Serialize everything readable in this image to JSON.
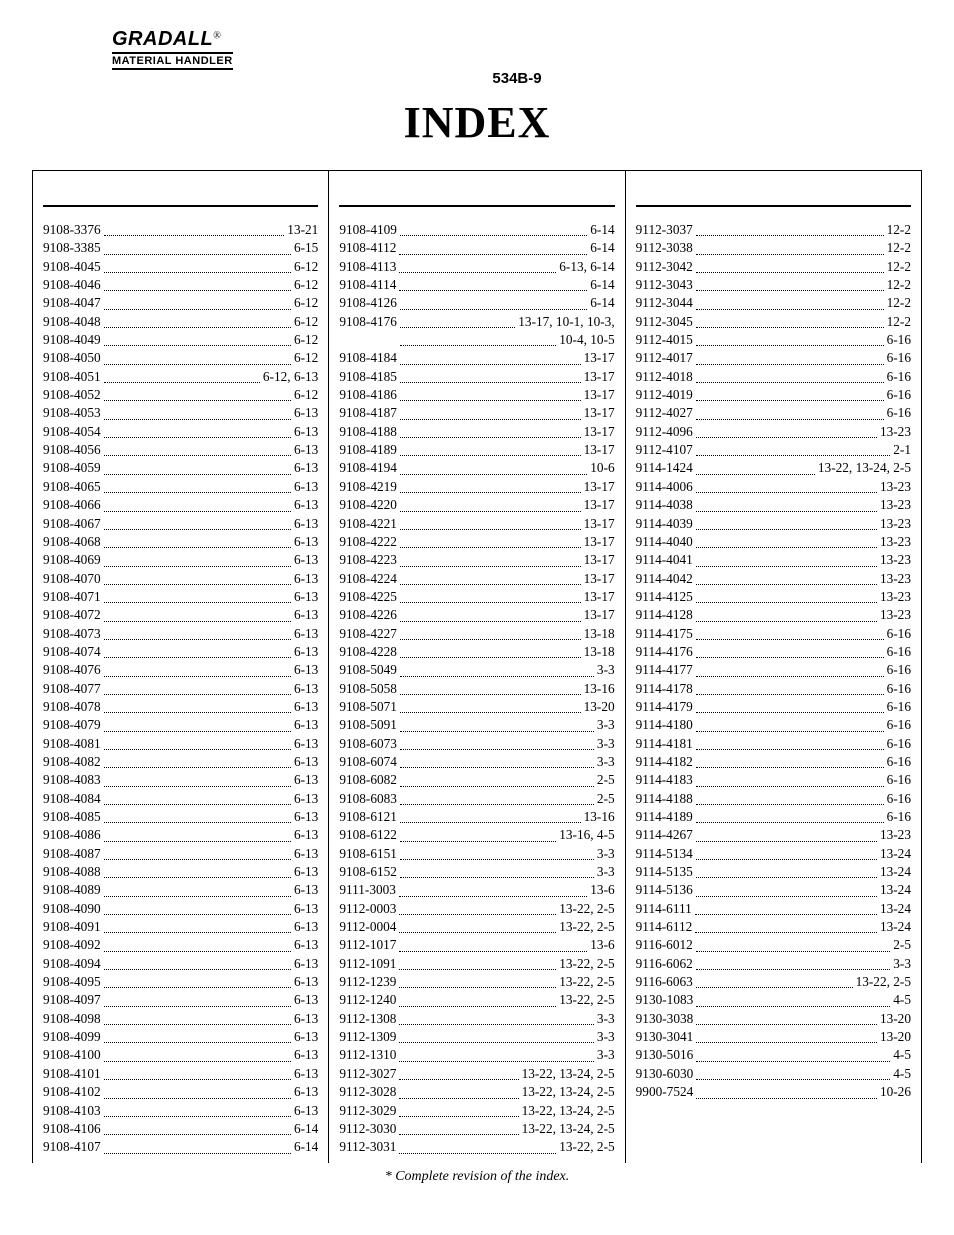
{
  "brand": {
    "name": "GRADALL",
    "registered": "®",
    "subtitle": "MATERIAL HANDLER",
    "model": "534B-9"
  },
  "title": "INDEX",
  "footnote": "*  Complete revision of the index.",
  "columns": [
    [
      {
        "part": "9108-3376",
        "page": "13-21"
      },
      {
        "part": "9108-3385",
        "page": "6-15"
      },
      {
        "part": "9108-4045",
        "page": "6-12"
      },
      {
        "part": "9108-4046",
        "page": "6-12"
      },
      {
        "part": "9108-4047",
        "page": "6-12"
      },
      {
        "part": "9108-4048",
        "page": "6-12"
      },
      {
        "part": "9108-4049",
        "page": "6-12"
      },
      {
        "part": "9108-4050",
        "page": "6-12"
      },
      {
        "part": "9108-4051",
        "page": "6-12, 6-13"
      },
      {
        "part": "9108-4052",
        "page": "6-12"
      },
      {
        "part": "9108-4053",
        "page": "6-13"
      },
      {
        "part": "9108-4054",
        "page": "6-13"
      },
      {
        "part": "9108-4056",
        "page": "6-13"
      },
      {
        "part": "9108-4059",
        "page": "6-13"
      },
      {
        "part": "9108-4065",
        "page": "6-13"
      },
      {
        "part": "9108-4066",
        "page": "6-13"
      },
      {
        "part": "9108-4067",
        "page": "6-13"
      },
      {
        "part": "9108-4068",
        "page": "6-13"
      },
      {
        "part": "9108-4069",
        "page": "6-13"
      },
      {
        "part": "9108-4070",
        "page": "6-13"
      },
      {
        "part": "9108-4071",
        "page": "6-13"
      },
      {
        "part": "9108-4072",
        "page": "6-13"
      },
      {
        "part": "9108-4073",
        "page": "6-13"
      },
      {
        "part": "9108-4074",
        "page": "6-13"
      },
      {
        "part": "9108-4076",
        "page": "6-13"
      },
      {
        "part": "9108-4077",
        "page": "6-13"
      },
      {
        "part": "9108-4078",
        "page": "6-13"
      },
      {
        "part": "9108-4079",
        "page": "6-13"
      },
      {
        "part": "9108-4081",
        "page": "6-13"
      },
      {
        "part": "9108-4082",
        "page": "6-13"
      },
      {
        "part": "9108-4083",
        "page": "6-13"
      },
      {
        "part": "9108-4084",
        "page": "6-13"
      },
      {
        "part": "9108-4085",
        "page": "6-13"
      },
      {
        "part": "9108-4086",
        "page": "6-13"
      },
      {
        "part": "9108-4087",
        "page": "6-13"
      },
      {
        "part": "9108-4088",
        "page": "6-13"
      },
      {
        "part": "9108-4089",
        "page": "6-13"
      },
      {
        "part": "9108-4090",
        "page": "6-13"
      },
      {
        "part": "9108-4091",
        "page": "6-13"
      },
      {
        "part": "9108-4092",
        "page": "6-13"
      },
      {
        "part": "9108-4094",
        "page": "6-13"
      },
      {
        "part": "9108-4095",
        "page": "6-13"
      },
      {
        "part": "9108-4097",
        "page": "6-13"
      },
      {
        "part": "9108-4098",
        "page": "6-13"
      },
      {
        "part": "9108-4099",
        "page": "6-13"
      },
      {
        "part": "9108-4100",
        "page": "6-13"
      },
      {
        "part": "9108-4101",
        "page": "6-13"
      },
      {
        "part": "9108-4102",
        "page": "6-13"
      },
      {
        "part": "9108-4103",
        "page": "6-13"
      },
      {
        "part": "9108-4106",
        "page": "6-14"
      },
      {
        "part": "9108-4107",
        "page": "6-14"
      }
    ],
    [
      {
        "part": "9108-4109",
        "page": "6-14"
      },
      {
        "part": "9108-4112",
        "page": "6-14"
      },
      {
        "part": "9108-4113",
        "page": "6-13, 6-14"
      },
      {
        "part": "9108-4114",
        "page": "6-14"
      },
      {
        "part": "9108-4126",
        "page": "6-14"
      },
      {
        "part": "9108-4176",
        "page": "13-17, 10-1, 10-3,"
      },
      {
        "cont": true,
        "part": "",
        "page": "10-4, 10-5"
      },
      {
        "part": "9108-4184",
        "page": "13-17"
      },
      {
        "part": "9108-4185",
        "page": "13-17"
      },
      {
        "part": "9108-4186",
        "page": "13-17"
      },
      {
        "part": "9108-4187",
        "page": "13-17"
      },
      {
        "part": "9108-4188",
        "page": "13-17"
      },
      {
        "part": "9108-4189",
        "page": "13-17"
      },
      {
        "part": "9108-4194",
        "page": "10-6"
      },
      {
        "part": "9108-4219",
        "page": "13-17"
      },
      {
        "part": "9108-4220",
        "page": "13-17"
      },
      {
        "part": "9108-4221",
        "page": "13-17"
      },
      {
        "part": "9108-4222",
        "page": "13-17"
      },
      {
        "part": "9108-4223",
        "page": "13-17"
      },
      {
        "part": "9108-4224",
        "page": "13-17"
      },
      {
        "part": "9108-4225",
        "page": "13-17"
      },
      {
        "part": "9108-4226",
        "page": "13-17"
      },
      {
        "part": "9108-4227",
        "page": "13-18"
      },
      {
        "part": "9108-4228",
        "page": "13-18"
      },
      {
        "part": "9108-5049",
        "page": "3-3"
      },
      {
        "part": "9108-5058",
        "page": "13-16"
      },
      {
        "part": "9108-5071",
        "page": "13-20"
      },
      {
        "part": "9108-5091",
        "page": "3-3"
      },
      {
        "part": "9108-6073",
        "page": "3-3"
      },
      {
        "part": "9108-6074",
        "page": "3-3"
      },
      {
        "part": "9108-6082",
        "page": "2-5"
      },
      {
        "part": "9108-6083",
        "page": "2-5"
      },
      {
        "part": "9108-6121",
        "page": "13-16"
      },
      {
        "part": "9108-6122",
        "page": "13-16, 4-5"
      },
      {
        "part": "9108-6151",
        "page": "3-3"
      },
      {
        "part": "9108-6152",
        "page": "3-3"
      },
      {
        "part": "9111-3003",
        "page": "13-6"
      },
      {
        "part": "9112-0003",
        "page": "13-22, 2-5"
      },
      {
        "part": "9112-0004",
        "page": "13-22, 2-5"
      },
      {
        "part": "9112-1017",
        "page": "13-6"
      },
      {
        "part": "9112-1091",
        "page": "13-22, 2-5"
      },
      {
        "part": "9112-1239",
        "page": "13-22, 2-5"
      },
      {
        "part": "9112-1240",
        "page": "13-22, 2-5"
      },
      {
        "part": "9112-1308",
        "page": "3-3"
      },
      {
        "part": "9112-1309",
        "page": "3-3"
      },
      {
        "part": "9112-1310",
        "page": "3-3"
      },
      {
        "part": "9112-3027",
        "page": "13-22, 13-24, 2-5"
      },
      {
        "part": "9112-3028",
        "page": "13-22, 13-24, 2-5"
      },
      {
        "part": "9112-3029",
        "page": "13-22, 13-24, 2-5"
      },
      {
        "part": "9112-3030",
        "page": "13-22, 13-24, 2-5"
      },
      {
        "part": "9112-3031",
        "page": "13-22, 2-5"
      }
    ],
    [
      {
        "part": "9112-3037",
        "page": "12-2"
      },
      {
        "part": "9112-3038",
        "page": "12-2"
      },
      {
        "part": "9112-3042",
        "page": "12-2"
      },
      {
        "part": "9112-3043",
        "page": "12-2"
      },
      {
        "part": "9112-3044",
        "page": "12-2"
      },
      {
        "part": "9112-3045",
        "page": "12-2"
      },
      {
        "part": "9112-4015",
        "page": "6-16"
      },
      {
        "part": "9112-4017",
        "page": "6-16"
      },
      {
        "part": "9112-4018",
        "page": "6-16"
      },
      {
        "part": "9112-4019",
        "page": "6-16"
      },
      {
        "part": "9112-4027",
        "page": "6-16"
      },
      {
        "part": "9112-4096",
        "page": "13-23"
      },
      {
        "part": "9112-4107",
        "page": "2-1"
      },
      {
        "part": "9114-1424",
        "page": "13-22, 13-24, 2-5"
      },
      {
        "part": "9114-4006",
        "page": "13-23"
      },
      {
        "part": "9114-4038",
        "page": "13-23"
      },
      {
        "part": "9114-4039",
        "page": "13-23"
      },
      {
        "part": "9114-4040",
        "page": "13-23"
      },
      {
        "part": "9114-4041",
        "page": "13-23"
      },
      {
        "part": "9114-4042",
        "page": "13-23"
      },
      {
        "part": "9114-4125",
        "page": "13-23"
      },
      {
        "part": "9114-4128",
        "page": "13-23"
      },
      {
        "part": "9114-4175",
        "page": "6-16"
      },
      {
        "part": "9114-4176",
        "page": "6-16"
      },
      {
        "part": "9114-4177",
        "page": "6-16"
      },
      {
        "part": "9114-4178",
        "page": "6-16"
      },
      {
        "part": "9114-4179",
        "page": "6-16"
      },
      {
        "part": "9114-4180",
        "page": "6-16"
      },
      {
        "part": "9114-4181",
        "page": "6-16"
      },
      {
        "part": "9114-4182",
        "page": "6-16"
      },
      {
        "part": "9114-4183",
        "page": "6-16"
      },
      {
        "part": "9114-4188",
        "page": "6-16"
      },
      {
        "part": "9114-4189",
        "page": "6-16"
      },
      {
        "part": "9114-4267",
        "page": "13-23"
      },
      {
        "part": "9114-5134",
        "page": "13-24"
      },
      {
        "part": "9114-5135",
        "page": "13-24"
      },
      {
        "part": "9114-5136",
        "page": "13-24"
      },
      {
        "part": "9114-6111",
        "page": "13-24"
      },
      {
        "part": "9114-6112",
        "page": "13-24"
      },
      {
        "part": "9116-6012",
        "page": "2-5"
      },
      {
        "part": "9116-6062",
        "page": "3-3"
      },
      {
        "part": "9116-6063",
        "page": "13-22, 2-5"
      },
      {
        "part": "9130-1083",
        "page": "4-5"
      },
      {
        "part": "9130-3038",
        "page": "13-20"
      },
      {
        "part": "9130-3041",
        "page": "13-20"
      },
      {
        "part": "9130-5016",
        "page": "4-5"
      },
      {
        "part": "9130-6030",
        "page": "4-5"
      },
      {
        "part": "9900-7524",
        "page": "10-26"
      }
    ]
  ]
}
